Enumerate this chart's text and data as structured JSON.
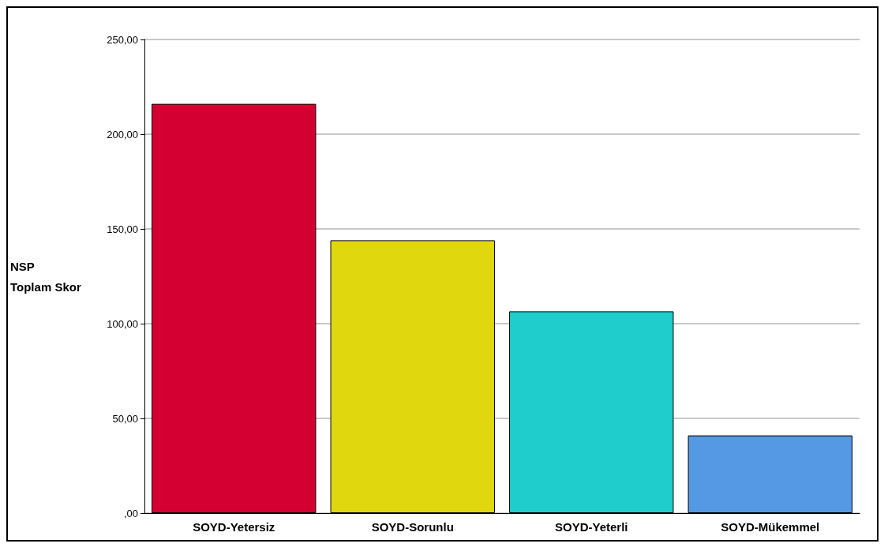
{
  "chart_data": {
    "type": "bar",
    "ylabel": "NSP\nToplam Skor",
    "categories": [
      "SOYD-Yetersiz",
      "SOYD-Sorunlu",
      "SOYD-Yeterli",
      "SOYD-Mükemmel"
    ],
    "values": [
      216,
      144,
      106.5,
      41
    ],
    "colors": [
      "#d50032",
      "#e1d70e",
      "#1ecdcc",
      "#5598e4"
    ],
    "ylim": [
      0,
      250
    ],
    "yticks": [
      {
        "value": 0,
        "label": ",00"
      },
      {
        "value": 50,
        "label": "50,00"
      },
      {
        "value": 100,
        "label": "100,00"
      },
      {
        "value": 150,
        "label": "150,00"
      },
      {
        "value": 200,
        "label": "200,00"
      },
      {
        "value": 250,
        "label": "250,00"
      }
    ],
    "grid": "y"
  }
}
